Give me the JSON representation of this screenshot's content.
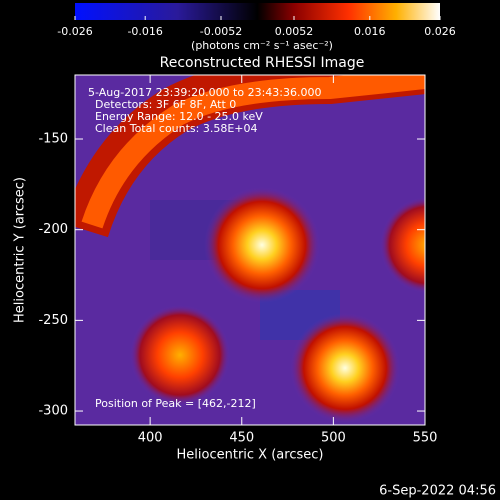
{
  "chart_data": {
    "type": "image",
    "title": "Reconstructed RHESSI Image",
    "colorbar": {
      "label": "(photons cm⁻² s⁻¹ asec⁻²)",
      "lim": [
        -0.026,
        0.026
      ],
      "ticks": [
        -0.026,
        -0.016,
        -0.0052,
        0.0052,
        0.016,
        0.026
      ]
    },
    "xlabel": "Heliocentric X (arcsec)",
    "ylabel": "Heliocentric Y (arcsec)",
    "xlim": [
      359,
      550
    ],
    "xticks": [
      400,
      450,
      500,
      550
    ],
    "ylim": [
      -307.7,
      -114.7
    ],
    "yticks": [
      -150,
      -200,
      -250,
      -300
    ],
    "annotations": [
      "5-Aug-2017 23:39:20.000 to 23:43:36.000",
      "Detectors: 3F 6F 8F, Att 0",
      "Energy Range: 12.0 - 25.0 keV",
      "Clean     Total counts: 3.58E+04"
    ],
    "peak_label": "Position of Peak = [462,-212]",
    "footer": "6-Sep-2022 04:56"
  }
}
